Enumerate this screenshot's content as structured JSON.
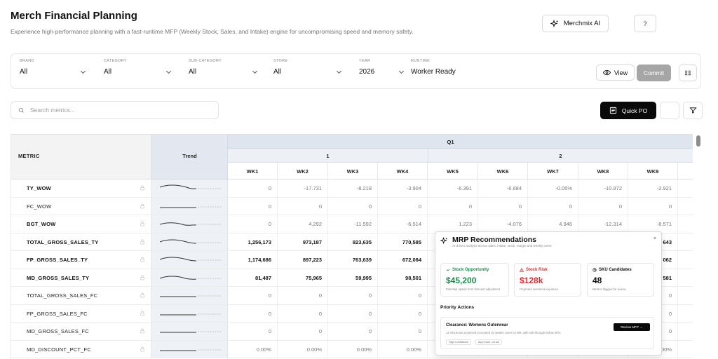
{
  "header": {
    "title": "Merch Financial Planning",
    "subtitle": "Experience high-performance planning with a fast-runtime MFP (Weekly Stock, Sales, and Intake) engine for uncompromising speed and memory safety.",
    "ai_button": "Merchmix AI",
    "help_button": "?"
  },
  "filters": {
    "brand": {
      "label": "BRAND",
      "value": "All"
    },
    "category": {
      "label": "CATEGORY",
      "value": "All"
    },
    "subcategory": {
      "label": "SUB-CATEGORY",
      "value": "All"
    },
    "store": {
      "label": "STORE",
      "value": "All"
    },
    "year": {
      "label": "YEAR",
      "value": "2026"
    },
    "runtime": {
      "label": "RUNTIME",
      "value": "Worker Ready"
    },
    "view_button": "View",
    "commit_button": "Commit"
  },
  "search": {
    "placeholder": "Search metrics..."
  },
  "toolbar": {
    "quick_po": "Quick PO"
  },
  "table": {
    "metric_header": "METRIC",
    "trend_header": "Trend",
    "quarter": "Q1",
    "groups": [
      "1",
      "2"
    ],
    "weeks": [
      "WK1",
      "WK2",
      "WK3",
      "WK4",
      "WK5",
      "WK6",
      "WK7",
      "WK8",
      "WK9"
    ],
    "rows": [
      {
        "metric": "TY_WOW",
        "bold": true,
        "values": [
          "0",
          "-17.731",
          "-8.218",
          "-3.904",
          "-6.391",
          "-6.684",
          "-0.05%",
          "-10.972",
          "-2.921"
        ]
      },
      {
        "metric": "FC_WOW",
        "bold": false,
        "values": [
          "0",
          "0",
          "0",
          "0",
          "0",
          "0",
          "0",
          "0",
          "0"
        ]
      },
      {
        "metric": "BGT_WOW",
        "bold": true,
        "values": [
          "0",
          "4.292",
          "-11.592",
          "-6.514",
          "1.223",
          "-4.076",
          "4.946",
          "-12.314",
          "-8.571"
        ]
      },
      {
        "metric": "TOTAL_GROSS_SALES_TY",
        "bold": true,
        "values": [
          "1,256,173",
          "973,187",
          "823,635",
          "770,585",
          "",
          "",
          "",
          "",
          "643"
        ]
      },
      {
        "metric": "FP_GROSS_SALES_TY",
        "bold": true,
        "values": [
          "1,174,686",
          "897,223",
          "763,639",
          "672,084",
          "",
          "",
          "",
          "",
          "062"
        ]
      },
      {
        "metric": "MD_GROSS_SALES_TY",
        "bold": true,
        "values": [
          "81,487",
          "75,965",
          "59,995",
          "98,501",
          "",
          "",
          "",
          "",
          "581"
        ]
      },
      {
        "metric": "TOTAL_GROSS_SALES_FC",
        "bold": false,
        "values": [
          "0",
          "0",
          "0",
          "0",
          "",
          "",
          "",
          "",
          "0"
        ]
      },
      {
        "metric": "FP_GROSS_SALES_FC",
        "bold": false,
        "values": [
          "0",
          "0",
          "0",
          "0",
          "",
          "",
          "",
          "",
          "0"
        ]
      },
      {
        "metric": "MD_GROSS_SALES_FC",
        "bold": false,
        "values": [
          "0",
          "0",
          "0",
          "0",
          "",
          "",
          "",
          "",
          "0"
        ]
      },
      {
        "metric": "MD_DISCOUNT_PCT_FC",
        "bold": false,
        "values": [
          "0.00%",
          "0.00%",
          "0.00%",
          "0.00%",
          "",
          "",
          "",
          "",
          "00%"
        ]
      }
    ]
  },
  "recommendations": {
    "title": "MRP Recommendations",
    "subtitle": "AI-driven analysis across sales, intake, stock, margin and weekly cover.",
    "close": "×",
    "cards": [
      {
        "label": "Stock Opportunity",
        "value": "$45,200",
        "note": "Potential upside from forecast adjustment",
        "color": "#1a8a4a"
      },
      {
        "label": "Stock Risk",
        "value": "$128k",
        "note": "Projected overstock exposure",
        "color": "#d12f2f"
      },
      {
        "label": "SKU Candidates",
        "value": "48",
        "note": "Metrics flagged for review",
        "color": "#111111"
      }
    ],
    "priority_title": "Priority Actions",
    "action": {
      "title": "Clearance: Womens Outerwear",
      "desc": "12 SKUs are projected to exceed 20 weeks cover by W8, with sell-through below 30%.",
      "button": "Review MFP →",
      "tags": [
        "High Confidence",
        "Avg Cover: 22.4w"
      ]
    }
  }
}
